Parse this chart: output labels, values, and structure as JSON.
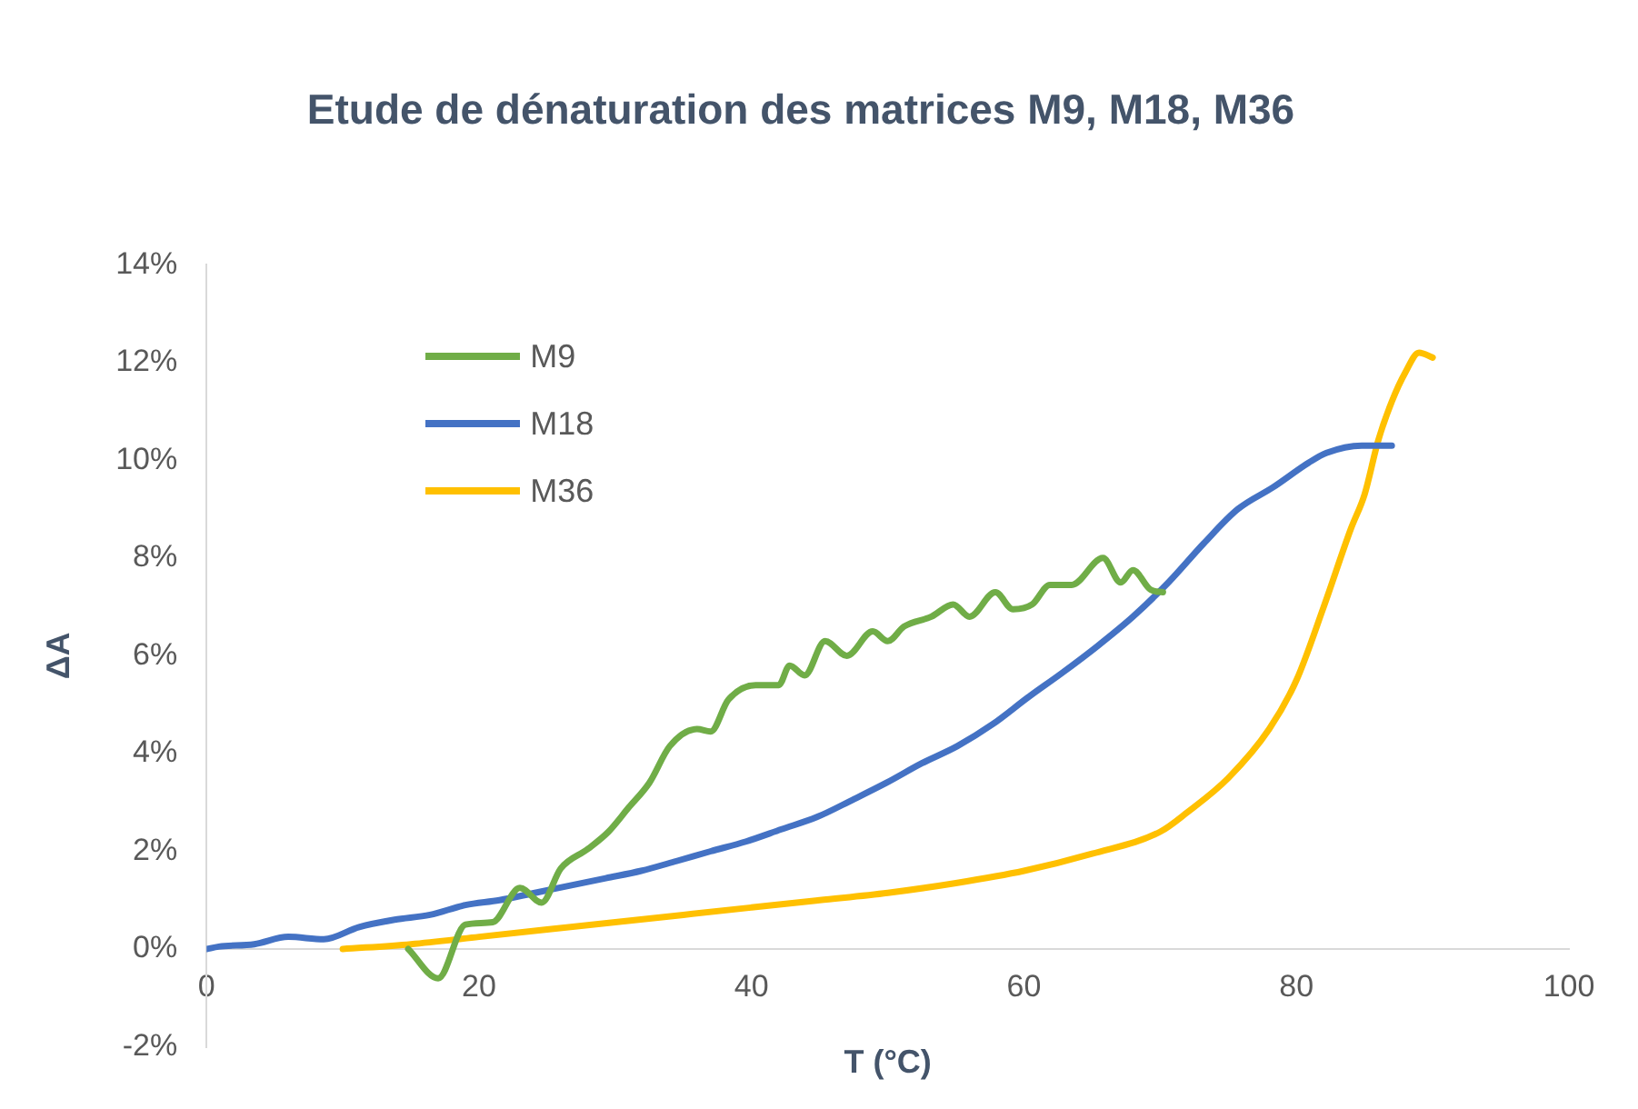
{
  "chart_data": {
    "type": "line",
    "title": "Etude de dénaturation des matrices M9, M18, M36",
    "xlabel": "T (°C)",
    "ylabel": "ΔA",
    "xlim": [
      0,
      100
    ],
    "xticks": [
      0,
      20,
      40,
      60,
      80,
      100
    ],
    "ylim": [
      -2,
      14
    ],
    "yticks": [
      {
        "value": -2,
        "label": "-2%"
      },
      {
        "value": 0,
        "label": "0%"
      },
      {
        "value": 2,
        "label": "2%"
      },
      {
        "value": 4,
        "label": "4%"
      },
      {
        "value": 6,
        "label": "6%"
      },
      {
        "value": 8,
        "label": "8%"
      },
      {
        "value": 10,
        "label": "10%"
      },
      {
        "value": 12,
        "label": "12%"
      },
      {
        "value": 14,
        "label": "14%"
      }
    ],
    "grid": false,
    "legend": "top left",
    "marker": "none",
    "line_style": "solid",
    "series": [
      {
        "name": "M9",
        "color": "#70ad47",
        "x": [
          14.8,
          17,
          19,
          21,
          23,
          24.6,
          26,
          28,
          29.5,
          31,
          32.5,
          34,
          36,
          37,
          38.3,
          40.3,
          42,
          42.8,
          43.9,
          45.4,
          47,
          48.9,
          50,
          51.2,
          53.2,
          54.8,
          56,
          57.9,
          59.2,
          60.6,
          61.9,
          63.5,
          65.8,
          67.1,
          68,
          69.3,
          70.2
        ],
        "values": [
          0,
          -0.6,
          0.5,
          0.55,
          1.25,
          0.95,
          1.65,
          2.05,
          2.4,
          2.9,
          3.4,
          4.15,
          4.5,
          4.45,
          5.1,
          5.4,
          5.4,
          5.8,
          5.6,
          6.3,
          6,
          6.5,
          6.3,
          6.6,
          6.8,
          7.05,
          6.8,
          7.3,
          6.95,
          7.05,
          7.45,
          7.45,
          8,
          7.5,
          7.75,
          7.35,
          7.3
        ]
      },
      {
        "name": "M18",
        "color": "#4472c4",
        "x": [
          0,
          0.9,
          3.5,
          6,
          8.6,
          11.2,
          13.8,
          16.4,
          19,
          21.5,
          24.1,
          26.7,
          29.3,
          31.9,
          34.5,
          37,
          39.6,
          42.2,
          44.8,
          47.4,
          49.9,
          52.5,
          55.1,
          57.7,
          60.3,
          62.8,
          65.4,
          68,
          70.6,
          73.2,
          75.7,
          78.3,
          80.9,
          82.2,
          84.8,
          87
        ],
        "values": [
          0,
          0.05,
          0.1,
          0.25,
          0.2,
          0.45,
          0.6,
          0.7,
          0.9,
          1,
          1.15,
          1.3,
          1.45,
          1.6,
          1.8,
          2,
          2.2,
          2.45,
          2.7,
          3.05,
          3.4,
          3.8,
          4.15,
          4.6,
          5.15,
          5.65,
          6.2,
          6.8,
          7.5,
          8.3,
          9,
          9.45,
          9.95,
          10.15,
          10.3,
          10.3
        ]
      },
      {
        "name": "M36",
        "color": "#ffc000",
        "x": [
          10,
          15,
          20,
          25,
          30,
          35,
          40,
          45,
          50,
          55,
          60,
          65,
          70,
          72,
          75,
          78,
          80,
          82,
          84,
          85,
          86,
          87,
          88,
          89,
          90
        ],
        "values": [
          0,
          0.1,
          0.25,
          0.4,
          0.55,
          0.7,
          0.85,
          1,
          1.15,
          1.35,
          1.6,
          1.95,
          2.4,
          2.8,
          3.5,
          4.5,
          5.5,
          7,
          8.6,
          9.3,
          10.4,
          11.2,
          11.8,
          12.2,
          12.1
        ]
      }
    ]
  }
}
